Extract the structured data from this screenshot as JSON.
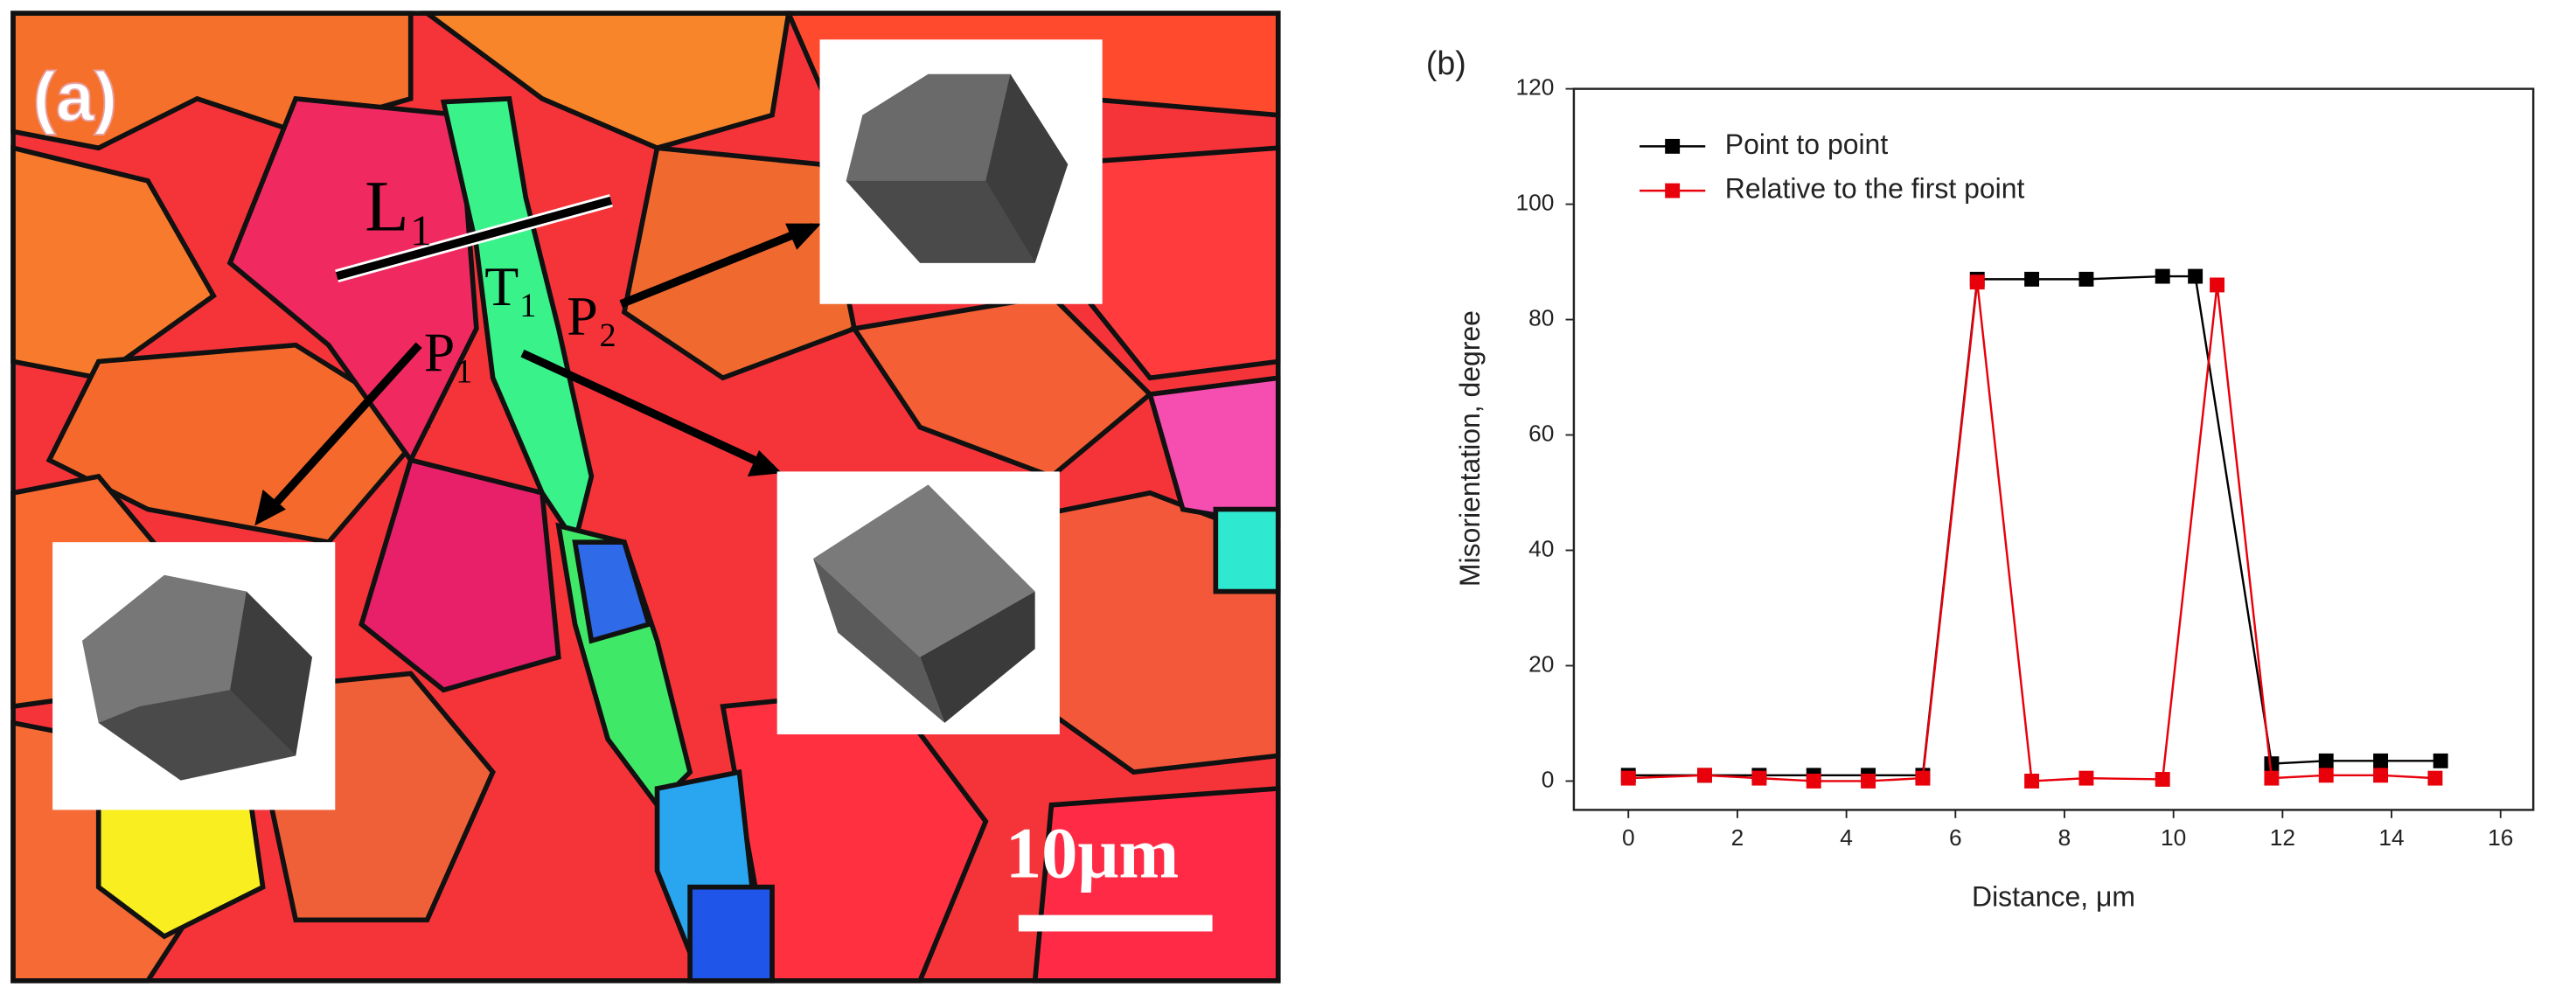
{
  "panel_a": {
    "label": "(a)",
    "annotations": [
      "L₁",
      "T₁",
      "P₁",
      "P₂"
    ],
    "scale_bar": "10μm"
  },
  "chart_data": {
    "type": "line",
    "panel_label": "(b)",
    "x_label": "Distance, μm",
    "y_label": "Misorientation, degree",
    "xlim": [
      -1,
      16.6
    ],
    "ylim": [
      -5,
      120
    ],
    "xticks": [
      0,
      2,
      4,
      6,
      8,
      10,
      12,
      14,
      16
    ],
    "yticks": [
      0,
      20,
      40,
      60,
      80,
      100,
      120
    ],
    "legend": "upper left",
    "grid": false,
    "series": [
      {
        "name": "Point to point",
        "color": "#000000",
        "x": [
          0,
          1.4,
          2.4,
          3.4,
          4.4,
          5.4,
          6.4,
          7.4,
          8.4,
          9.8,
          10.4,
          11.8,
          12.8,
          13.8,
          14.9
        ],
        "values": [
          1,
          1,
          1,
          1,
          1,
          1,
          87,
          87,
          87,
          87.5,
          87.5,
          3,
          3.5,
          3.5,
          3.5
        ]
      },
      {
        "name": "Relative to the first point",
        "color": "#e8000b",
        "x": [
          0,
          1.4,
          2.4,
          3.4,
          4.4,
          5.4,
          6.4,
          7.4,
          8.4,
          9.8,
          10.8,
          11.8,
          12.8,
          13.8,
          14.8
        ],
        "values": [
          0.5,
          1,
          0.5,
          0,
          0,
          0.5,
          86.5,
          0,
          0.5,
          0.3,
          86,
          0.5,
          1,
          1,
          0.5
        ]
      }
    ]
  }
}
